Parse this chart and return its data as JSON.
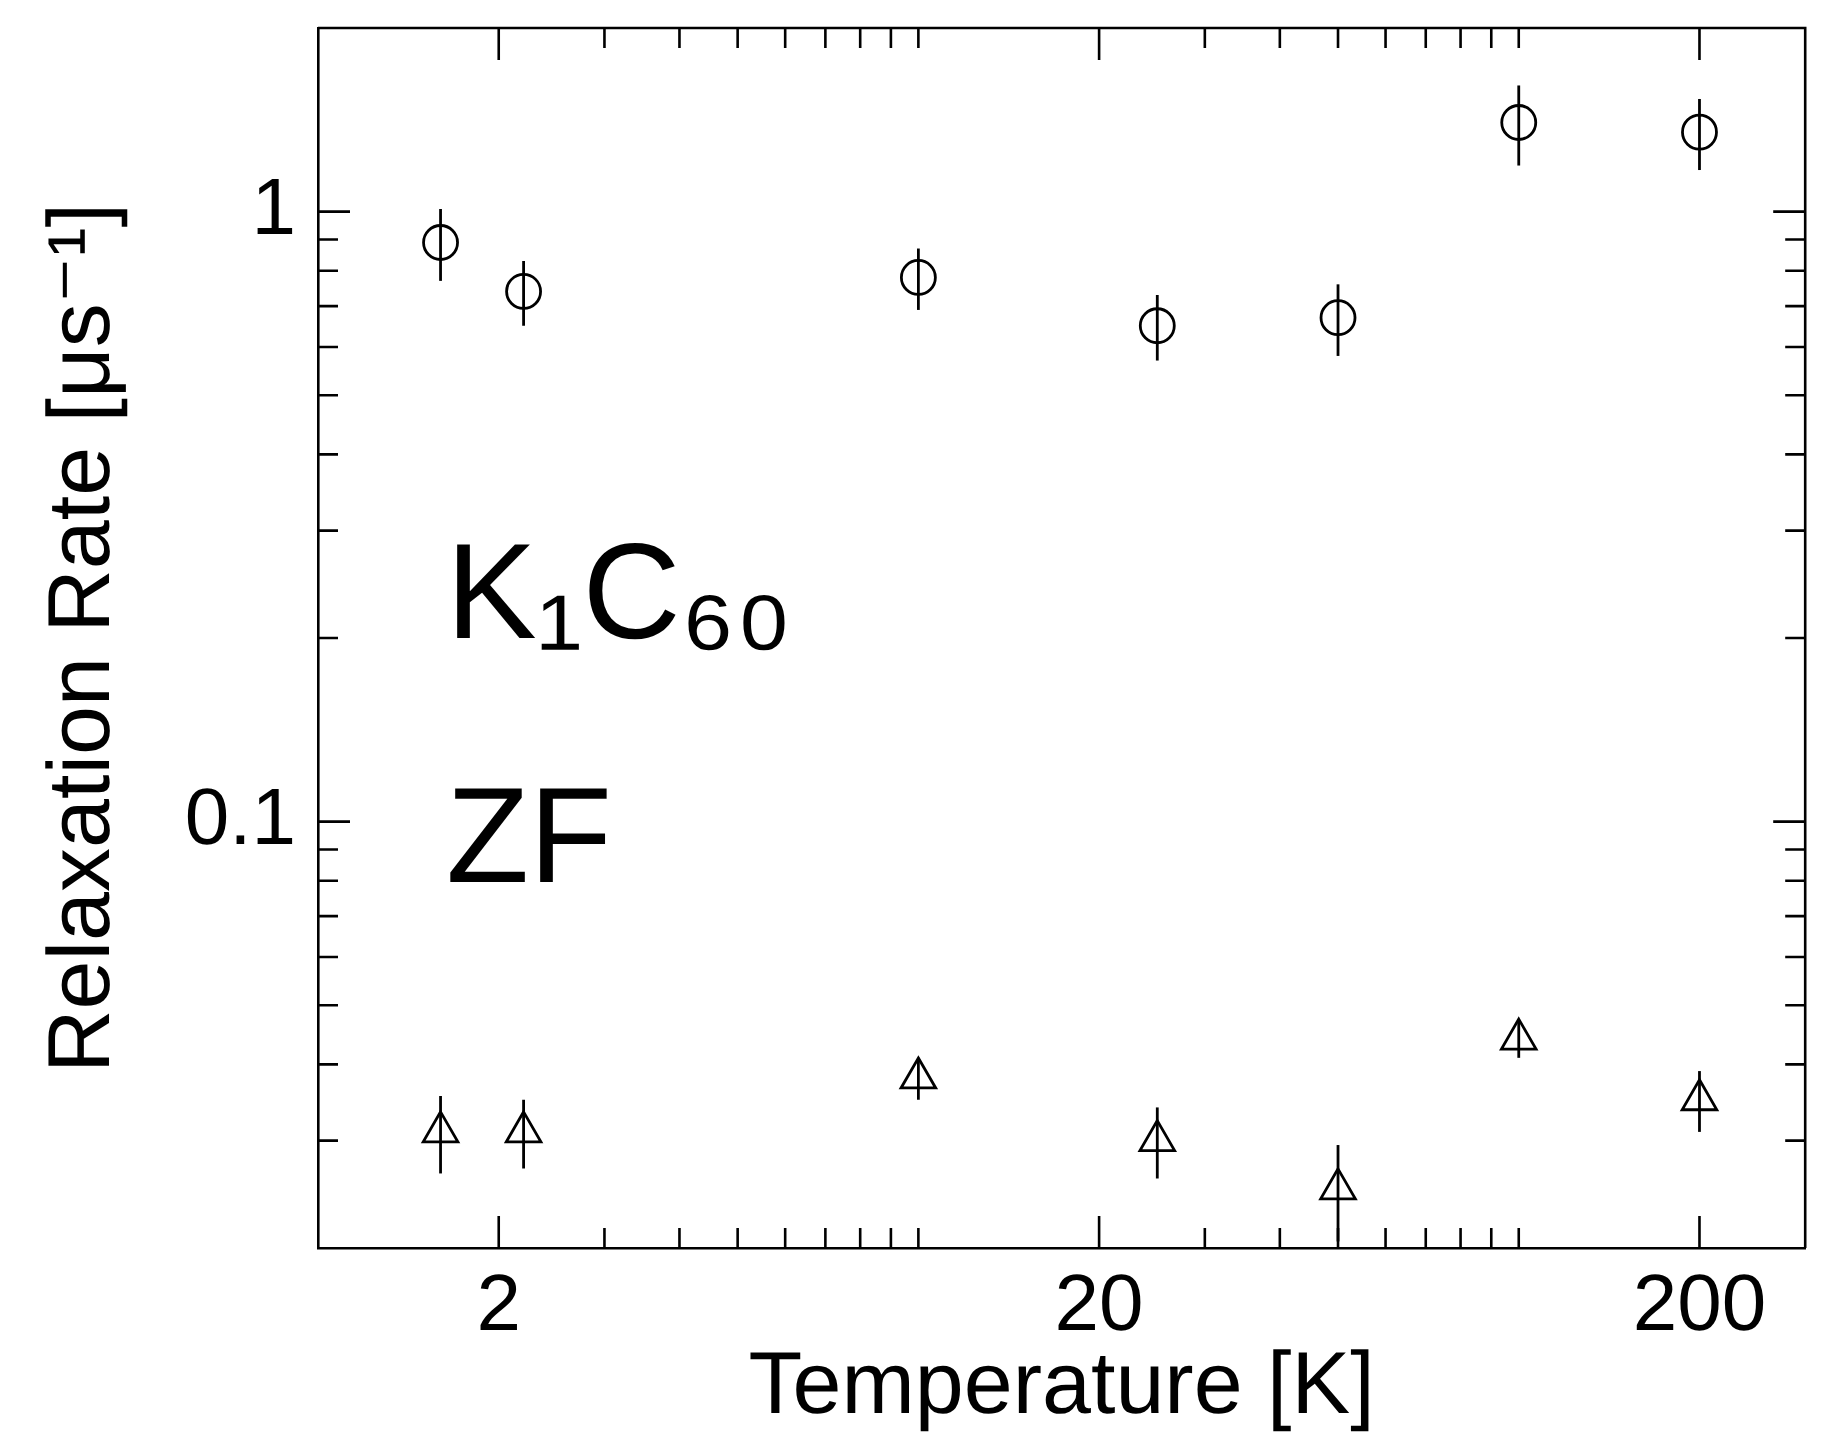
{
  "chart_data": {
    "type": "scatter",
    "xlabel": "Temperature [K]",
    "ylabel": "Relaxation Rate [μs⁻¹]",
    "x": [
      1.6,
      2.2,
      10,
      25,
      50,
      100,
      200
    ],
    "series": [
      {
        "color": "#000000",
        "marker": "circle",
        "values": [
          0.89,
          0.74,
          0.78,
          0.65,
          0.67,
          1.4,
          1.35
        ],
        "errors": [
          0.12,
          0.09,
          0.09,
          0.08,
          0.09,
          0.21,
          0.18
        ]
      },
      {
        "color": "#000000",
        "marker": "triangle",
        "values": [
          0.031,
          0.031,
          0.038,
          0.03,
          0.025,
          0.044,
          0.035
        ],
        "errors": [
          0.0045,
          0.004,
          0.003,
          0.004,
          0.0045,
          0.003,
          0.004
        ]
      }
    ],
    "log": "xy",
    "xlim": [
      1,
      300
    ],
    "ylim": [
      0.02,
      2
    ],
    "xticks": [
      2,
      {
        "value": 3,
        "label": null
      },
      {
        "value": 4,
        "label": null
      },
      {
        "value": 5,
        "label": null
      },
      {
        "value": 6,
        "label": null
      },
      {
        "value": 7,
        "label": null
      },
      {
        "value": 8,
        "label": null
      },
      {
        "value": 9,
        "label": null
      },
      {
        "value": 10,
        "label": null
      },
      20,
      {
        "value": 30,
        "label": null
      },
      {
        "value": 40,
        "label": null
      },
      {
        "value": 50,
        "label": null
      },
      {
        "value": 60,
        "label": null
      },
      {
        "value": 70,
        "label": null
      },
      {
        "value": 80,
        "label": null
      },
      {
        "value": 90,
        "label": null
      },
      {
        "value": 100,
        "label": null
      },
      200
    ],
    "yticks": [
      {
        "value": 0.03,
        "label": null
      },
      {
        "value": 0.04,
        "label": null
      },
      {
        "value": 0.05,
        "label": null
      },
      {
        "value": 0.06,
        "label": null
      },
      {
        "value": 0.07,
        "label": null
      },
      {
        "value": 0.08,
        "label": null
      },
      {
        "value": 0.09,
        "label": null
      },
      0.1,
      {
        "value": 0.2,
        "label": null
      },
      {
        "value": 0.3,
        "label": null
      },
      {
        "value": 0.4,
        "label": null
      },
      {
        "value": 0.5,
        "label": null
      },
      {
        "value": 0.6,
        "label": null
      },
      {
        "value": 0.7,
        "label": null
      },
      {
        "value": 0.8,
        "label": null
      },
      {
        "value": 0.9,
        "label": null
      },
      1
    ],
    "annotations": [
      "K₁C₆₀",
      "ZF"
    ],
    "grid": false,
    "legend": false
  }
}
